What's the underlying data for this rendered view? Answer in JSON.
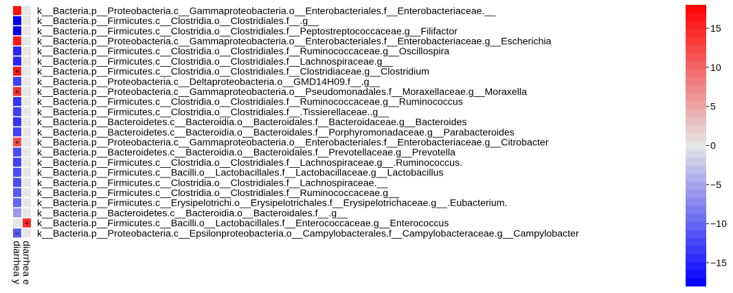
{
  "chart_data": {
    "type": "heatmap",
    "title": "",
    "columns": [
      "diarrhea y",
      "diarrhea e"
    ],
    "rows": [
      "k__Bacteria.p__Proteobacteria.c__Gammaproteobacteria.o__Enterobacteriales.f__Enterobacteriaceae.__",
      "k__Bacteria.p__Firmicutes.c__Clostridia.o__Clostridiales.f__.g__",
      "k__Bacteria.p__Firmicutes.c__Clostridia.o__Clostridiales.f__Peptostreptococcaceae.g__Filifactor",
      "k__Bacteria.p__Proteobacteria.c__Gammaproteobacteria.o__Enterobacteriales.f__Enterobacteriaceae.g__Escherichia",
      "k__Bacteria.p__Firmicutes.c__Clostridia.o__Clostridiales.f__Ruminococcaceae.g__Oscillospira",
      "k__Bacteria.p__Firmicutes.c__Clostridia.o__Clostridiales.f__Lachnospiraceae.g__",
      "k__Bacteria.p__Firmicutes.c__Clostridia.o__Clostridiales.f__Clostridiaceae.g__Clostridium",
      "k__Bacteria.p__Proteobacteria.c__Deltaproteobacteria.o__GMD14H09.f__.g__",
      "k__Bacteria.p__Proteobacteria.c__Gammaproteobacteria.o__Pseudomonadales.f__Moraxellaceae.g__Moraxella",
      "k__Bacteria.p__Firmicutes.c__Clostridia.o__Clostridiales.f__Ruminococcaceae.g__Ruminococcus",
      "k__Bacteria.p__Firmicutes.c__Clostridia.o__Clostridiales.f__.Tissierellaceae..g__",
      "k__Bacteria.p__Bacteroidetes.c__Bacteroidia.o__Bacteroidales.f__Bacteroidaceae.g__Bacteroides",
      "k__Bacteria.p__Bacteroidetes.c__Bacteroidia.o__Bacteroidales.f__Porphyromonadaceae.g__Parabacteroides",
      "k__Bacteria.p__Proteobacteria.c__Gammaproteobacteria.o__Enterobacteriales.f__Enterobacteriaceae.g__Citrobacter",
      "k__Bacteria.p__Bacteroidetes.c__Bacteroidia.o__Bacteroidales.f__Prevotellaceae.g__Prevotella",
      "k__Bacteria.p__Firmicutes.c__Clostridia.o__Clostridiales.f__Lachnospiraceae.g__.Ruminococcus.",
      "k__Bacteria.p__Firmicutes.c__Bacilli.o__Lactobacillales.f__Lactobacillaceae.g__Lactobacillus",
      "k__Bacteria.p__Firmicutes.c__Clostridia.o__Clostridiales.f__Lachnospiraceae.__",
      "k__Bacteria.p__Firmicutes.c__Clostridia.o__Clostridiales.f__Ruminococcaceae.g__",
      "k__Bacteria.p__Firmicutes.c__Erysipelotrichi.o__Erysipelotrichales.f__Erysipelotrichaceae.g__.Eubacterium.",
      "k__Bacteria.p__Bacteroidetes.c__Bacteroidia.o__Bacteroidales.f__.g__",
      "k__Bacteria.p__Firmicutes.c__Bacilli.o__Lactobacillales.f__Enterococcaceae.g__Enterococcus",
      "k__Bacteria.p__Proteobacteria.c__Epsilonproteobacteria.o__Campylobacterales.f__Campylobacteraceae.g__Campylobacter"
    ],
    "values": [
      [
        17,
        0
      ],
      [
        -18,
        0
      ],
      [
        -18,
        0
      ],
      [
        16,
        0
      ],
      [
        -15,
        0
      ],
      [
        -15,
        0
      ],
      [
        16,
        0
      ],
      [
        -13,
        0
      ],
      [
        14,
        0
      ],
      [
        -14,
        0
      ],
      [
        -13,
        0
      ],
      [
        -14,
        0
      ],
      [
        -13,
        0
      ],
      [
        12,
        0
      ],
      [
        -12,
        0
      ],
      [
        -13,
        0
      ],
      [
        -12,
        0
      ],
      [
        -12,
        0
      ],
      [
        -11,
        0
      ],
      [
        -10,
        0
      ],
      [
        -6,
        0
      ],
      [
        0,
        15
      ],
      [
        -11,
        0
      ]
    ],
    "marks": [
      [
        "",
        ""
      ],
      [
        "−",
        ""
      ],
      [
        "−",
        ""
      ],
      [
        "",
        ""
      ],
      [
        "",
        ""
      ],
      [
        "",
        ""
      ],
      [
        "+",
        ""
      ],
      [
        "",
        ""
      ],
      [
        "+",
        ""
      ],
      [
        "",
        ""
      ],
      [
        "",
        ""
      ],
      [
        "",
        ""
      ],
      [
        "",
        ""
      ],
      [
        "+",
        ""
      ],
      [
        "",
        ""
      ],
      [
        "",
        ""
      ],
      [
        "",
        ""
      ],
      [
        "",
        ""
      ],
      [
        "",
        ""
      ],
      [
        "",
        ""
      ],
      [
        "",
        ""
      ],
      [
        "",
        "+"
      ],
      [
        "−",
        ""
      ]
    ],
    "colorbar": {
      "min": -18,
      "max": 18,
      "ticks": [
        15,
        10,
        5,
        0,
        -5,
        -10,
        -15
      ],
      "tick_labels": [
        "15",
        "10",
        "5",
        "0",
        "−5",
        "−10",
        "−15"
      ],
      "low_color": "#0000ff",
      "mid_color": "#e6e6e6",
      "high_color": "#ff0000",
      "steps": 35
    }
  }
}
